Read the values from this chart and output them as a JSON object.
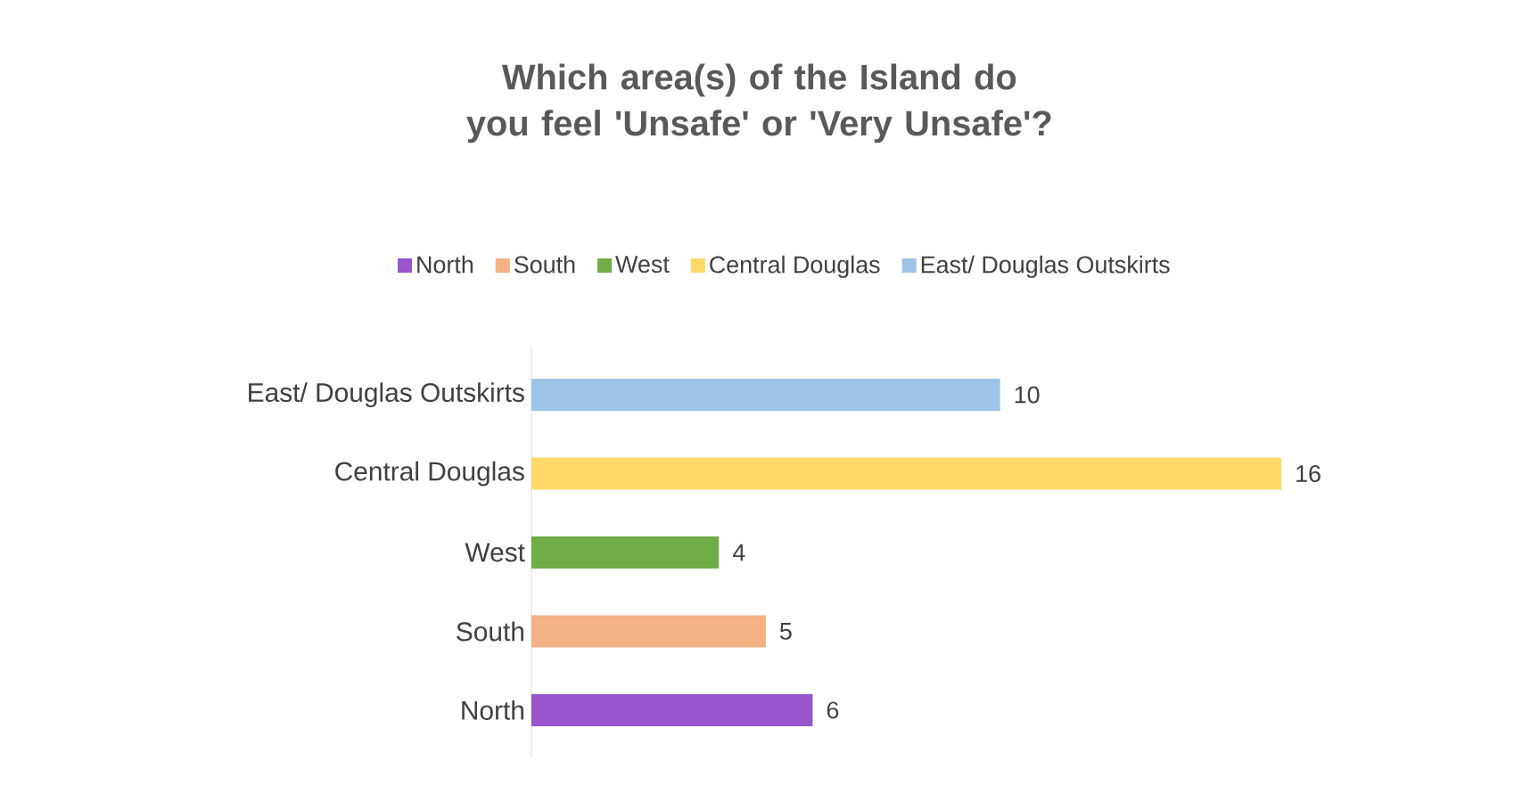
{
  "chart_data": {
    "type": "bar",
    "orientation": "horizontal",
    "title": "Which area(s) of the Island do you feel 'Unsafe' or 'Very Unsafe'?",
    "categories": [
      "East/ Douglas Outskirts",
      "Central Douglas",
      "West",
      "South",
      "North"
    ],
    "series": [
      {
        "name": "North",
        "color": "#9955cc",
        "values": [
          null,
          null,
          null,
          null,
          6
        ]
      },
      {
        "name": "South",
        "color": "#f4b183",
        "values": [
          null,
          null,
          null,
          5,
          null
        ]
      },
      {
        "name": "West",
        "color": "#70ad47",
        "values": [
          null,
          null,
          4,
          null,
          null
        ]
      },
      {
        "name": "Central Douglas",
        "color": "#ffd966",
        "values": [
          null,
          16,
          null,
          null,
          null
        ]
      },
      {
        "name": "East/ Douglas Outskirts",
        "color": "#9dc3e6",
        "values": [
          10,
          null,
          null,
          null,
          null
        ]
      }
    ],
    "data_labels": true,
    "legend": "top"
  }
}
